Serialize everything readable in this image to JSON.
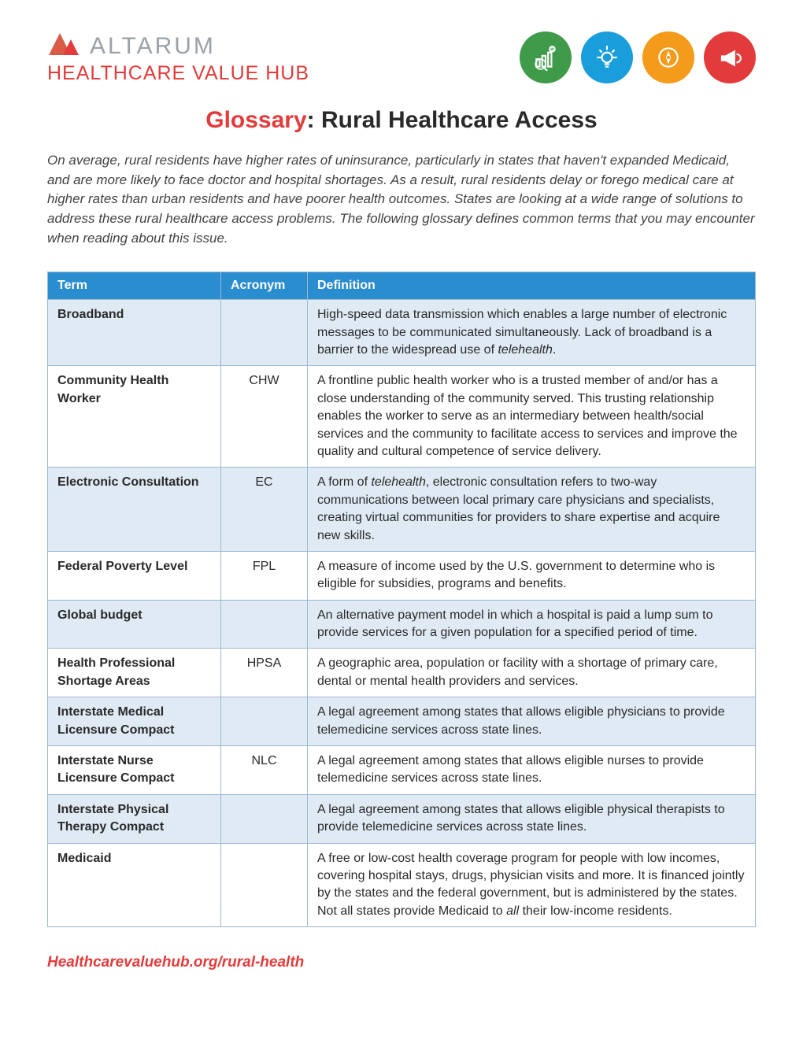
{
  "brand": {
    "name": "ALTARUM",
    "subline": "HEALTHCARE VALUE HUB",
    "nameColor": "#9aa1a8",
    "sublineColor": "#e33b3b"
  },
  "iconCircles": [
    {
      "name": "research-icon",
      "bg": "#3f9b4a"
    },
    {
      "name": "idea-icon",
      "bg": "#1a9edb"
    },
    {
      "name": "compass-icon",
      "bg": "#f49b1b"
    },
    {
      "name": "megaphone-icon",
      "bg": "#e33b3b"
    }
  ],
  "title": {
    "accent": "Glossary",
    "rest": ": Rural Healthcare Access"
  },
  "intro": "On average, rural residents have higher rates of uninsurance, particularly in states that haven't expanded Medicaid, and are more likely to face doctor and hospital shortages. As a result, rural residents delay or forego medical care at higher rates than urban residents and have poorer health outcomes. States are looking at a wide range of solutions to address these rural healthcare access problems. The following glossary defines common terms that you may encounter when reading about this issue.",
  "tableHeaders": {
    "term": "Term",
    "acronym": "Acronym",
    "definition": "Definition"
  },
  "rows": [
    {
      "term": "Broadband",
      "acronym": "",
      "definition": "High-speed data transmission which enables a large number of electronic messages to be communicated simultaneously. Lack of broadband is a barrier to the widespread use of <em class=\"keyword\">telehealth</em>."
    },
    {
      "term": "Community Health Worker",
      "acronym": "CHW",
      "definition": "A frontline public health worker who is a trusted member of and/or has a close understanding of the community served. This trusting relationship enables the worker to serve as an intermediary between health/social services and the community to facilitate access to services and improve the quality and cultural competence of service delivery."
    },
    {
      "term": "Electronic Consultation",
      "acronym": "EC",
      "definition": "A form of <em class=\"keyword\">telehealth</em>, electronic consultation refers to two-way communications between local primary care physicians and specialists, creating virtual communities for providers to share expertise and acquire new skills."
    },
    {
      "term": "Federal Poverty Level",
      "acronym": "FPL",
      "definition": "A measure of income used by the U.S. government to determine who is eligible for subsidies, programs and benefits."
    },
    {
      "term": "Global budget",
      "acronym": "",
      "definition": "An alternative payment model in which a hospital is paid a lump sum to provide services for a given population for a specified period of time."
    },
    {
      "term": "Health Professional Shortage Areas",
      "acronym": "HPSA",
      "definition": "A geographic area, population or facility with a shortage of primary care, dental or mental health providers and services."
    },
    {
      "term": "Interstate Medical Licensure Compact",
      "acronym": "",
      "definition": "A legal agreement among states that allows eligible physicians to provide telemedicine services across state lines."
    },
    {
      "term": "Interstate Nurse Licensure Compact",
      "acronym": "NLC",
      "definition": "A legal agreement among states that allows eligible nurses to provide telemedicine services across state lines."
    },
    {
      "term": "Interstate Physical Therapy Compact",
      "acronym": "",
      "definition": "A legal agreement among states that allows eligible physical therapists to provide telemedicine services across state lines."
    },
    {
      "term": "Medicaid",
      "acronym": "",
      "definition": "A free or low-cost health coverage program for people with low incomes, covering hospital stays, drugs, physician visits and more. It is financed jointly by the states and the federal government, but is administered by the states. Not all states provide Medicaid to <em class=\"keyword\">all</em> their low-income residents."
    }
  ],
  "footerLink": "Healthcarevaluehub.org/rural-health",
  "colors": {
    "headerBg": "#2a8dcf",
    "oddRowBg": "#dfeaf4",
    "evenRowBg": "#ffffff",
    "accent": "#e33b3b",
    "border": "#9cb9cf"
  }
}
